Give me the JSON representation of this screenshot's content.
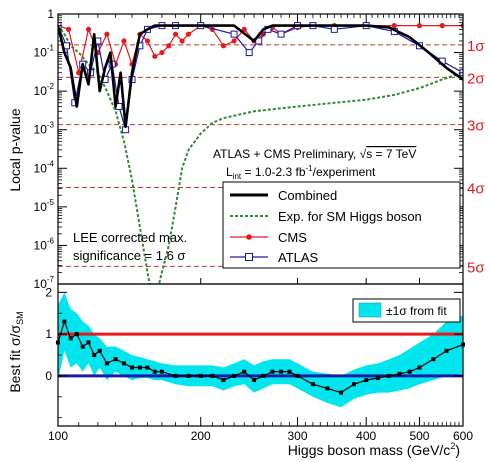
{
  "chart_data": [
    {
      "type": "line",
      "panel": "top",
      "ylabel": "Local p-value",
      "y_scale": "log",
      "ylim": [
        1e-07,
        1
      ],
      "xlim": [
        110,
        600
      ],
      "x_scale": "log",
      "y_ticks": [
        {
          "value": 1,
          "label": "1"
        },
        {
          "value": 0.1,
          "label": "10-1",
          "base": "10",
          "exp": "-1"
        },
        {
          "value": 0.01,
          "label": "10-2",
          "base": "10",
          "exp": "-2"
        },
        {
          "value": 0.001,
          "label": "10-3",
          "base": "10",
          "exp": "-3"
        },
        {
          "value": 0.0001,
          "label": "10-4",
          "base": "10",
          "exp": "-4"
        },
        {
          "value": 1e-05,
          "label": "10-5",
          "base": "10",
          "exp": "-5"
        },
        {
          "value": 1e-06,
          "label": "10-6",
          "base": "10",
          "exp": "-6"
        },
        {
          "value": 1e-07,
          "label": "10-7",
          "base": "10",
          "exp": "-7"
        }
      ],
      "sigma_lines": [
        {
          "label": "1σ",
          "p": 0.1587
        },
        {
          "label": "2σ",
          "p": 0.02275
        },
        {
          "label": "3σ",
          "p": 0.00135
        },
        {
          "label": "4σ",
          "p": 3.17e-05
        },
        {
          "label": "5σ",
          "p": 2.87e-07
        }
      ],
      "annotations": {
        "line1_pre": "ATLAS + CMS Preliminary, ",
        "sqrt": "√",
        "line1_post": "s = 7 TeV",
        "line2_L": "L",
        "line2_sub": "int",
        "line2_mid": " = 1.0-2.3 fb",
        "line2_sup": "-1",
        "line2_post": "/experiment",
        "lee1": "LEE corrected max.",
        "lee2": "significance = 1.6 σ"
      },
      "legend": {
        "position": "bottom-right",
        "entries": [
          {
            "name": "Combined",
            "color": "#000000",
            "style": "thick-line"
          },
          {
            "name": "Exp. for SM Higgs boson",
            "color": "#2e8b2e",
            "style": "dashed"
          },
          {
            "name": "CMS",
            "color": "#e41a1c",
            "style": "line-dots"
          },
          {
            "name": "ATLAS",
            "color": "#1a1aa8",
            "style": "line-squares"
          }
        ]
      },
      "series": [
        {
          "name": "Combined",
          "color": "#000000",
          "x": [
            110,
            113,
            116,
            119,
            122,
            125,
            128,
            131,
            134,
            137,
            140,
            143,
            146,
            150,
            155,
            160,
            165,
            170,
            175,
            180,
            200,
            230,
            250,
            260,
            270,
            300,
            350,
            400,
            440,
            480,
            520,
            560,
            600
          ],
          "y": [
            0.5,
            0.1,
            0.04,
            0.004,
            0.05,
            0.015,
            0.3,
            0.01,
            0.04,
            0.1,
            0.004,
            0.03,
            0.0012,
            0.03,
            0.3,
            0.4,
            0.5,
            0.5,
            0.5,
            0.5,
            0.5,
            0.5,
            0.2,
            0.4,
            0.5,
            0.5,
            0.5,
            0.5,
            0.45,
            0.25,
            0.1,
            0.04,
            0.02
          ]
        },
        {
          "name": "Exp. for SM Higgs boson",
          "color": "#2e8b2e",
          "x": [
            110,
            113,
            116,
            120,
            125,
            130,
            135,
            140,
            145,
            150,
            155,
            160,
            163,
            166,
            170,
            175,
            180,
            185,
            190,
            200,
            210,
            220,
            250,
            300,
            350,
            400,
            450,
            500,
            550,
            600
          ],
          "y": [
            0.5,
            0.3,
            0.15,
            0.1,
            0.05,
            0.03,
            0.01,
            0.003,
            0.0005,
            5e-05,
            3e-06,
            2e-07,
            5e-08,
            5e-08,
            2e-07,
            1e-06,
            1e-05,
            0.0001,
            0.0003,
            0.0008,
            0.0015,
            0.002,
            0.003,
            0.004,
            0.005,
            0.006,
            0.008,
            0.012,
            0.02,
            0.03
          ]
        },
        {
          "name": "CMS",
          "color": "#e41a1c",
          "x": [
            110,
            115,
            120,
            125,
            130,
            135,
            140,
            145,
            150,
            155,
            160,
            165,
            170,
            175,
            180,
            185,
            190,
            200,
            210,
            220,
            230,
            240,
            250,
            260,
            270,
            280,
            300,
            320,
            350,
            400,
            450,
            500,
            550,
            600
          ],
          "y": [
            0.5,
            0.4,
            0.03,
            0.4,
            0.1,
            0.3,
            0.05,
            0.2,
            0.05,
            0.3,
            0.2,
            0.08,
            0.1,
            0.15,
            0.3,
            0.2,
            0.3,
            0.5,
            0.4,
            0.15,
            0.2,
            0.4,
            0.2,
            0.3,
            0.45,
            0.3,
            0.45,
            0.5,
            0.5,
            0.5,
            0.5,
            0.5,
            0.5,
            0.5
          ]
        },
        {
          "name": "ATLAS",
          "color": "#1a1aa8",
          "x": [
            110,
            114,
            118,
            122,
            126,
            130,
            134,
            138,
            142,
            146,
            150,
            155,
            160,
            170,
            180,
            200,
            230,
            245,
            255,
            265,
            280,
            300,
            320,
            350,
            400,
            450,
            500,
            550,
            600
          ],
          "y": [
            0.5,
            0.15,
            0.005,
            0.05,
            0.03,
            0.2,
            0.02,
            0.05,
            0.004,
            0.001,
            0.02,
            0.15,
            0.4,
            0.5,
            0.5,
            0.5,
            0.3,
            0.1,
            0.2,
            0.4,
            0.3,
            0.5,
            0.5,
            0.4,
            0.5,
            0.35,
            0.15,
            0.06,
            0.03
          ]
        }
      ]
    },
    {
      "type": "line",
      "panel": "bottom",
      "ylabel_main": "Best fit σ/σ",
      "ylabel_sub": "SM",
      "xlabel_main": "Higgs boson mass (GeV/c",
      "xlabel_sup": "2",
      "xlabel_close": ")",
      "x_scale": "log",
      "xlim": [
        110,
        600
      ],
      "ylim": [
        -1.2,
        2.2
      ],
      "y_ticks": [
        {
          "value": 0,
          "label": "0"
        },
        {
          "value": 1,
          "label": "1"
        },
        {
          "value": 2,
          "label": "2"
        }
      ],
      "x_ticks": [
        {
          "value": 100,
          "label": "100"
        },
        {
          "value": 200,
          "label": "200"
        },
        {
          "value": 300,
          "label": "300"
        },
        {
          "value": 400,
          "label": "400"
        },
        {
          "value": 500,
          "label": "500"
        },
        {
          "value": 600,
          "label": "600"
        }
      ],
      "reference_lines": [
        {
          "y": 1,
          "color": "#e41a1c"
        },
        {
          "y": 0,
          "color": "#1a1aa8"
        }
      ],
      "legend": {
        "position": "top-right",
        "entries": [
          {
            "name": "±1σ from fit",
            "color": "#00e5ee",
            "style": "band"
          }
        ]
      },
      "series": [
        {
          "name": "Best fit",
          "color": "#000000",
          "x": [
            110,
            113,
            116,
            119,
            122,
            125,
            128,
            131,
            135,
            140,
            145,
            150,
            155,
            160,
            165,
            170,
            180,
            190,
            200,
            210,
            220,
            230,
            240,
            250,
            260,
            270,
            280,
            290,
            300,
            320,
            340,
            360,
            380,
            400,
            420,
            440,
            460,
            480,
            500,
            530,
            560,
            600
          ],
          "y": [
            0.8,
            1.3,
            0.9,
            1.0,
            0.7,
            0.8,
            0.5,
            0.6,
            0.3,
            0.4,
            0.3,
            0.2,
            0.2,
            0.2,
            0.1,
            0.1,
            0.0,
            0.0,
            0.0,
            0.0,
            -0.1,
            0.0,
            0.1,
            -0.1,
            0.0,
            0.1,
            0.1,
            0.1,
            0.0,
            -0.2,
            -0.3,
            -0.4,
            -0.2,
            -0.1,
            -0.05,
            0.0,
            0.05,
            0.1,
            0.2,
            0.4,
            0.6,
            0.75
          ]
        },
        {
          "name": "±1σ from fit",
          "color": "#00e5ee",
          "x": [
            110,
            113,
            116,
            119,
            122,
            125,
            128,
            131,
            135,
            140,
            145,
            150,
            155,
            160,
            165,
            170,
            180,
            190,
            200,
            210,
            220,
            230,
            240,
            250,
            260,
            270,
            280,
            290,
            300,
            320,
            340,
            360,
            380,
            400,
            420,
            440,
            460,
            480,
            500,
            530,
            560,
            600
          ],
          "upper": [
            1.7,
            2.0,
            1.6,
            1.5,
            1.3,
            1.2,
            1.0,
            0.9,
            0.7,
            0.7,
            0.6,
            0.5,
            0.45,
            0.4,
            0.35,
            0.3,
            0.25,
            0.25,
            0.25,
            0.25,
            0.2,
            0.3,
            0.4,
            0.25,
            0.35,
            0.4,
            0.4,
            0.4,
            0.3,
            0.1,
            0.05,
            0.0,
            0.15,
            0.25,
            0.3,
            0.4,
            0.5,
            0.65,
            0.8,
            1.0,
            1.3,
            1.45
          ],
          "lower": [
            -0.1,
            0.6,
            0.2,
            0.3,
            0.1,
            0.3,
            0.0,
            0.2,
            -0.1,
            0.1,
            0.0,
            -0.1,
            -0.05,
            -0.05,
            -0.1,
            -0.1,
            -0.2,
            -0.25,
            -0.25,
            -0.25,
            -0.35,
            -0.25,
            -0.2,
            -0.4,
            -0.3,
            -0.2,
            -0.2,
            -0.2,
            -0.3,
            -0.5,
            -0.65,
            -0.75,
            -0.55,
            -0.45,
            -0.4,
            -0.4,
            -0.35,
            -0.3,
            -0.2,
            -0.1,
            0.0,
            0.05
          ]
        }
      ]
    }
  ]
}
